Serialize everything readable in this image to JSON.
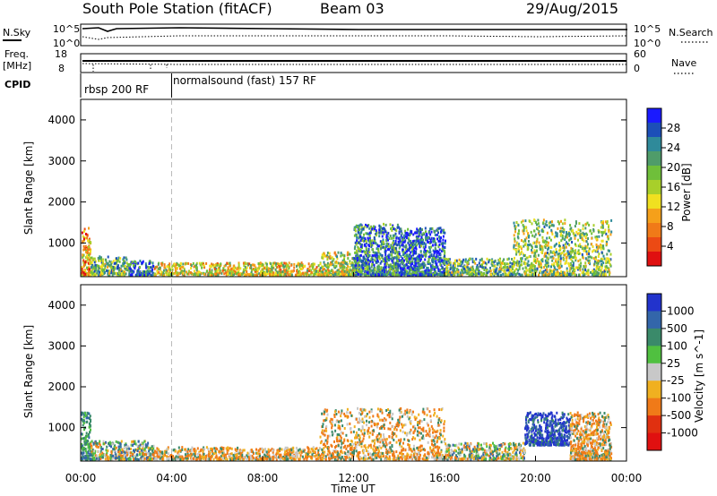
{
  "header": {
    "station": "South Pole Station (fitACF)",
    "beam": "Beam 03",
    "date": "29/Aug/2015"
  },
  "noise_panel": {
    "left_label": "N.Sky",
    "right_label": "N.Search",
    "left_ticks": [
      "10^5",
      "10^0"
    ],
    "right_ticks": [
      "10^5",
      "10^0"
    ]
  },
  "freq_panel": {
    "left_label_1": "Freq.",
    "left_label_2": "[MHz]",
    "right_label": "Nave",
    "left_ticks": [
      "18",
      "8"
    ],
    "right_ticks": [
      "60",
      "0"
    ]
  },
  "cpid": {
    "label": "CPID",
    "segments": [
      {
        "label": "rbsp 200 RF",
        "start_hour": 0,
        "end_hour": 4
      },
      {
        "label": "normalsound (fast) 157 RF",
        "start_hour": 4,
        "end_hour": 24
      }
    ]
  },
  "x_axis": {
    "label": "Time UT",
    "ticks": [
      "00:00",
      "04:00",
      "08:00",
      "12:00",
      "16:00",
      "20:00",
      "00:00"
    ],
    "tick_hours": [
      0,
      4,
      8,
      12,
      16,
      20,
      24
    ],
    "range_hours": [
      0,
      24
    ]
  },
  "chart_data": [
    {
      "type": "heatmap",
      "title": "",
      "xlabel": "",
      "ylabel": "Slant Range [km]",
      "xlim_hours": [
        0,
        24
      ],
      "ylim": [
        180,
        4500
      ],
      "y_ticks": [
        "1000",
        "2000",
        "3000",
        "4000"
      ],
      "y_tick_values": [
        1000,
        2000,
        3000,
        4000
      ],
      "colorbar": {
        "label": "Power [dB]",
        "ticks": [
          "4",
          "8",
          "12",
          "16",
          "20",
          "24",
          "28"
        ],
        "tick_values": [
          4,
          8,
          12,
          16,
          20,
          24,
          28
        ],
        "range": [
          0,
          32
        ],
        "colors": [
          "#1a1aff",
          "#1c4fb8",
          "#2f8a9a",
          "#4f9c6a",
          "#6fbf3a",
          "#a8cf2a",
          "#f0e020",
          "#f5a01a",
          "#f07a18",
          "#ec4a14",
          "#e01010"
        ]
      },
      "echo_regions": [
        {
          "t_start": 0.0,
          "t_end": 0.4,
          "r_start": 250,
          "r_end": 1400,
          "level": 10
        },
        {
          "t_start": 0.4,
          "t_end": 2.0,
          "r_start": 250,
          "r_end": 700,
          "level": 20
        },
        {
          "t_start": 2.0,
          "t_end": 3.2,
          "r_start": 250,
          "r_end": 600,
          "level": 26
        },
        {
          "t_start": 3.2,
          "t_end": 10.5,
          "r_start": 250,
          "r_end": 550,
          "level": 14
        },
        {
          "t_start": 10.5,
          "t_end": 12.0,
          "r_start": 250,
          "r_end": 800,
          "level": 16
        },
        {
          "t_start": 12.0,
          "t_end": 14.0,
          "r_start": 250,
          "r_end": 1500,
          "level": 24
        },
        {
          "t_start": 14.0,
          "t_end": 16.0,
          "r_start": 250,
          "r_end": 1400,
          "level": 26
        },
        {
          "t_start": 16.0,
          "t_end": 19.0,
          "r_start": 250,
          "r_end": 650,
          "level": 20
        },
        {
          "t_start": 19.0,
          "t_end": 23.3,
          "r_start": 250,
          "r_end": 1600,
          "level": 18
        }
      ]
    },
    {
      "type": "heatmap",
      "title": "",
      "xlabel": "Time UT",
      "ylabel": "Slant Range [km]",
      "xlim_hours": [
        0,
        24
      ],
      "ylim": [
        180,
        4500
      ],
      "y_ticks": [
        "1000",
        "2000",
        "3000",
        "4000"
      ],
      "y_tick_values": [
        1000,
        2000,
        3000,
        4000
      ],
      "colorbar": {
        "label": "Velocity [m s^-1]",
        "ticks": [
          "1000",
          "500",
          "100",
          "25",
          "-25",
          "-100",
          "-500",
          "-1000"
        ],
        "colors": [
          "#2233cc",
          "#3366aa",
          "#3a8a6a",
          "#50c040",
          "#c8c8c8",
          "#f0b020",
          "#f07a18",
          "#e03010",
          "#e01010"
        ]
      },
      "echo_regions": [
        {
          "t_start": 0.0,
          "t_end": 0.4,
          "r_start": 250,
          "r_end": 1400,
          "kind": "positive"
        },
        {
          "t_start": 0.4,
          "t_end": 3.2,
          "r_start": 250,
          "r_end": 700,
          "kind": "mixed"
        },
        {
          "t_start": 3.2,
          "t_end": 10.5,
          "r_start": 250,
          "r_end": 550,
          "kind": "negative"
        },
        {
          "t_start": 10.5,
          "t_end": 16.0,
          "r_start": 250,
          "r_end": 1500,
          "kind": "negative"
        },
        {
          "t_start": 16.0,
          "t_end": 19.5,
          "r_start": 250,
          "r_end": 650,
          "kind": "mixed"
        },
        {
          "t_start": 19.5,
          "t_end": 21.5,
          "r_start": 600,
          "r_end": 1400,
          "kind": "positive_strong"
        },
        {
          "t_start": 21.5,
          "t_end": 23.3,
          "r_start": 250,
          "r_end": 1400,
          "kind": "negative"
        }
      ]
    }
  ]
}
